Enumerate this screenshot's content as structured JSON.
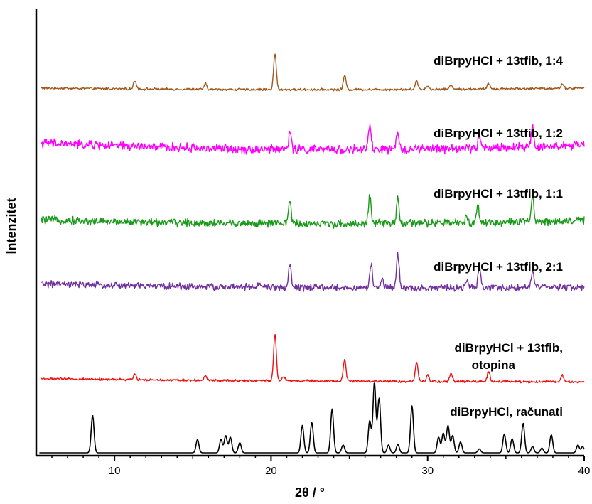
{
  "chart_data": {
    "type": "line",
    "title": "",
    "xlabel": "2θ / °",
    "ylabel": "Intenzitet",
    "xlim": [
      5,
      40
    ],
    "xticks": [
      10,
      20,
      30,
      40
    ],
    "xticklabels": [
      "10",
      "20",
      "30",
      "40"
    ],
    "y_tick_labels_shown": false,
    "grid": false,
    "legend": "labels placed above each trace, right side",
    "series": [
      {
        "name": "diBrpyHCl + 13tfib, 1:4",
        "color": "#a0581a",
        "offset": 5,
        "noise": 0.012,
        "background": [
          0.02,
          0.02,
          0.02
        ],
        "peaks": [
          [
            11.3,
            0.11
          ],
          [
            15.8,
            0.07
          ],
          [
            20.25,
            0.46
          ],
          [
            24.7,
            0.18
          ],
          [
            29.3,
            0.11
          ],
          [
            30.0,
            0.04
          ],
          [
            31.5,
            0.06
          ],
          [
            33.9,
            0.07
          ],
          [
            38.6,
            0.05
          ]
        ]
      },
      {
        "name": "diBrpyHCl + 13tfib, 1:2",
        "color": "#ff00ff",
        "offset": 4,
        "noise": 0.045,
        "background": [
          0.13,
          0.03,
          0.1
        ],
        "peaks": [
          [
            21.2,
            0.22
          ],
          [
            26.3,
            0.3
          ],
          [
            28.1,
            0.2
          ],
          [
            33.3,
            0.15
          ],
          [
            36.7,
            0.25
          ]
        ]
      },
      {
        "name": "diBrpyHCl + 13tfib, 1:1",
        "color": "#1a9a1a",
        "offset": 3,
        "noise": 0.04,
        "background": [
          0.1,
          0.0,
          0.09
        ],
        "peaks": [
          [
            21.2,
            0.3
          ],
          [
            26.3,
            0.36
          ],
          [
            28.1,
            0.32
          ],
          [
            33.2,
            0.22
          ],
          [
            32.5,
            0.08
          ],
          [
            36.7,
            0.3
          ]
        ]
      },
      {
        "name": "diBrpyHCl + 13tfib, 2:1",
        "color": "#7030a0",
        "offset": 2,
        "noise": 0.035,
        "background": [
          0.08,
          0.0,
          0.04
        ],
        "peaks": [
          [
            19.3,
            0.06
          ],
          [
            21.2,
            0.28
          ],
          [
            26.4,
            0.3
          ],
          [
            27.1,
            0.1
          ],
          [
            28.1,
            0.42
          ],
          [
            32.5,
            0.1
          ],
          [
            33.3,
            0.3
          ],
          [
            36.7,
            0.2
          ]
        ]
      },
      {
        "name": "diBrpyHCl + 13tfib, otopina",
        "label_lines": [
          "diBrpyHCl + 13tfib,",
          "otopina"
        ],
        "color": "#ee1111",
        "offset": 1,
        "noise": 0.012,
        "background": [
          0.04,
          0.0,
          0.0
        ],
        "peaks": [
          [
            11.3,
            0.07
          ],
          [
            15.8,
            0.05
          ],
          [
            20.25,
            0.6
          ],
          [
            20.8,
            0.06
          ],
          [
            24.7,
            0.28
          ],
          [
            29.3,
            0.25
          ],
          [
            30.0,
            0.09
          ],
          [
            31.5,
            0.1
          ],
          [
            33.9,
            0.13
          ],
          [
            38.6,
            0.08
          ]
        ]
      },
      {
        "name": "diBrpyHCl, računati",
        "color": "#000000",
        "offset": 0,
        "noise": 0,
        "background": [
          0.0,
          0.0,
          0.0
        ],
        "peaks": [
          [
            8.6,
            0.48
          ],
          [
            15.3,
            0.17
          ],
          [
            16.8,
            0.17
          ],
          [
            17.1,
            0.22
          ],
          [
            17.4,
            0.2
          ],
          [
            18.0,
            0.13
          ],
          [
            22.0,
            0.35
          ],
          [
            22.6,
            0.39
          ],
          [
            23.9,
            0.56
          ],
          [
            24.6,
            0.1
          ],
          [
            26.3,
            0.41
          ],
          [
            26.6,
            0.9
          ],
          [
            26.9,
            0.7
          ],
          [
            27.5,
            0.1
          ],
          [
            28.1,
            0.11
          ],
          [
            29.0,
            0.6
          ],
          [
            30.7,
            0.2
          ],
          [
            31.0,
            0.25
          ],
          [
            31.3,
            0.35
          ],
          [
            31.6,
            0.22
          ],
          [
            32.1,
            0.14
          ],
          [
            33.3,
            0.05
          ],
          [
            34.9,
            0.24
          ],
          [
            35.4,
            0.18
          ],
          [
            36.1,
            0.38
          ],
          [
            36.7,
            0.08
          ],
          [
            37.3,
            0.06
          ],
          [
            37.9,
            0.23
          ],
          [
            39.6,
            0.1
          ],
          [
            39.9,
            0.08
          ]
        ]
      }
    ]
  }
}
